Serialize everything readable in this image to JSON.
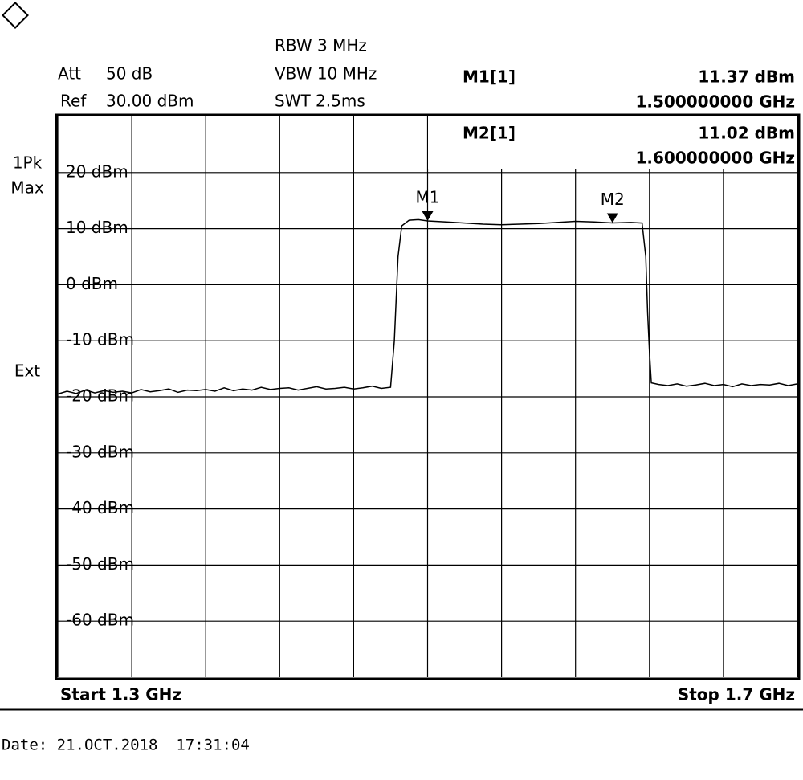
{
  "chart_data": {
    "type": "line",
    "settings": {
      "att": "Att",
      "att_value": "50 dB",
      "ref": "Ref",
      "ref_value": "30.00 dBm",
      "rbw": "RBW 3 MHz",
      "vbw": "VBW 10 MHz",
      "swt": "SWT 2.5ms",
      "detector": [
        "1Pk",
        "Max"
      ],
      "trigger": "Ext"
    },
    "start_label": "Start 1.3 GHz",
    "stop_label": "Stop 1.7 GHz",
    "date_label": "Date: 21.OCT.2018  17:31:04",
    "xlim": [
      1.3,
      1.7
    ],
    "ylim": [
      -70,
      30
    ],
    "xticks": [
      1.3,
      1.34,
      1.38,
      1.42,
      1.46,
      1.5,
      1.54,
      1.58,
      1.62,
      1.66,
      1.7
    ],
    "yticks": [
      {
        "value": 20,
        "label": "20 dBm"
      },
      {
        "value": 10,
        "label": "10 dBm"
      },
      {
        "value": 0,
        "label": "0 dBm"
      },
      {
        "value": -10,
        "label": "-10 dBm"
      },
      {
        "value": -20,
        "label": "-20 dBm"
      },
      {
        "value": -30,
        "label": "-30 dBm"
      },
      {
        "value": -40,
        "label": "-40 dBm"
      },
      {
        "value": -50,
        "label": "-50 dBm"
      },
      {
        "value": -60,
        "label": "-60 dBm"
      }
    ],
    "grid": true,
    "series": [
      {
        "color": "#000000",
        "x": [
          1.3,
          1.305,
          1.31,
          1.315,
          1.32,
          1.325,
          1.33,
          1.335,
          1.34,
          1.345,
          1.35,
          1.355,
          1.36,
          1.365,
          1.37,
          1.375,
          1.38,
          1.385,
          1.39,
          1.395,
          1.4,
          1.405,
          1.41,
          1.415,
          1.42,
          1.425,
          1.43,
          1.435,
          1.44,
          1.445,
          1.45,
          1.455,
          1.46,
          1.465,
          1.47,
          1.475,
          1.48,
          1.482,
          1.484,
          1.486,
          1.49,
          1.495,
          1.5,
          1.51,
          1.52,
          1.53,
          1.54,
          1.55,
          1.56,
          1.57,
          1.58,
          1.59,
          1.6,
          1.61,
          1.616,
          1.618,
          1.619,
          1.62,
          1.621,
          1.625,
          1.63,
          1.635,
          1.64,
          1.645,
          1.65,
          1.655,
          1.66,
          1.665,
          1.67,
          1.675,
          1.68,
          1.685,
          1.69,
          1.695,
          1.7
        ],
        "values": [
          -19.5,
          -19.0,
          -19.4,
          -18.8,
          -19.3,
          -18.9,
          -19.2,
          -19.0,
          -19.3,
          -18.7,
          -19.1,
          -18.9,
          -18.6,
          -19.2,
          -18.8,
          -18.9,
          -18.7,
          -19.0,
          -18.4,
          -18.9,
          -18.6,
          -18.8,
          -18.3,
          -18.7,
          -18.5,
          -18.4,
          -18.8,
          -18.5,
          -18.2,
          -18.6,
          -18.5,
          -18.3,
          -18.6,
          -18.4,
          -18.1,
          -18.5,
          -18.3,
          -10,
          5,
          10.5,
          11.5,
          11.6,
          11.37,
          11.2,
          11.0,
          10.8,
          10.7,
          10.8,
          10.9,
          11.1,
          11.3,
          11.2,
          11.02,
          11.1,
          11.0,
          5,
          -5,
          -12,
          -17.5,
          -17.8,
          -18.0,
          -17.7,
          -18.1,
          -17.9,
          -17.6,
          -18.0,
          -17.8,
          -18.2,
          -17.7,
          -18.0,
          -17.8,
          -17.9,
          -17.6,
          -18.0,
          -17.7
        ]
      }
    ],
    "markers": [
      {
        "name": "M1",
        "readout": "M1[1]",
        "x": 1.5,
        "y": 11.37,
        "y_label": "11.37 dBm",
        "x_label": "1.500000000 GHz"
      },
      {
        "name": "M2",
        "readout": "M2[1]",
        "x": 1.6,
        "y": 11.02,
        "y_label": "11.02 dBm",
        "x_label": "1.600000000 GHz"
      }
    ]
  }
}
